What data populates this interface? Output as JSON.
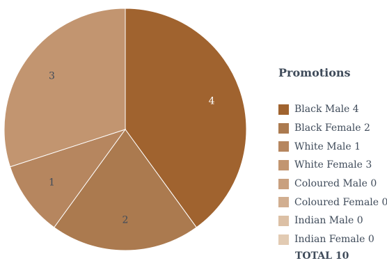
{
  "chart_data": {
    "type": "pie",
    "title": "Promotions",
    "slices": [
      {
        "label": "Black Male",
        "value": 4,
        "color": "#a0632f",
        "text": "Black Male 4"
      },
      {
        "label": "Black Female",
        "value": 2,
        "color": "#ab7a4f",
        "text": "Black Female 2"
      },
      {
        "label": "White Male",
        "value": 1,
        "color": "#b6865f",
        "text": "White Male 1"
      },
      {
        "label": "White Female",
        "value": 3,
        "color": "#c29570",
        "text": "White Female 3"
      },
      {
        "label": "Coloured Male",
        "value": 0,
        "color": "#c9a07f",
        "text": "Coloured Male 0"
      },
      {
        "label": "Coloured Female",
        "value": 0,
        "color": "#d1ae90",
        "text": "Coloured Female 0"
      },
      {
        "label": "Indian Male",
        "value": 0,
        "color": "#dcc0a5",
        "text": "Indian Male 0"
      },
      {
        "label": "Indian Female",
        "value": 0,
        "color": "#e2cbb3",
        "text": "Indian Female 0"
      }
    ],
    "total_text": "TOTAL 10",
    "legend_position": "right",
    "label_colors": {
      "dark_slice": "#ffffff",
      "light_slice": "#3f4b5a"
    }
  }
}
